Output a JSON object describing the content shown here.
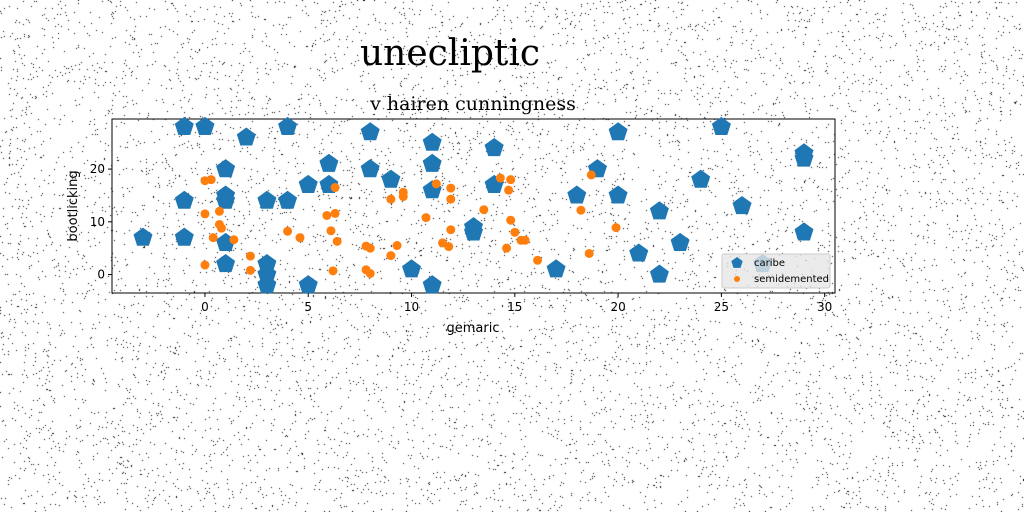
{
  "chart_data": {
    "type": "scatter",
    "suptitle": "unecliptic",
    "title": "v hairen cunningness",
    "xlabel": "gemaric",
    "ylabel": "bootlicking",
    "xlim": [
      -4.5,
      30.5
    ],
    "ylim": [
      -3.5,
      29.5
    ],
    "xticks": [
      0,
      5,
      10,
      15,
      20,
      25,
      30
    ],
    "yticks": [
      0,
      10,
      20
    ],
    "grid": false,
    "legend_position": "lower-right",
    "series": [
      {
        "name": "caribe",
        "marker": "pentagon",
        "color": "#1f77b4",
        "points": [
          [
            -3,
            7
          ],
          [
            -1,
            28
          ],
          [
            -1,
            14
          ],
          [
            -1,
            7
          ],
          [
            0,
            28
          ],
          [
            1,
            20
          ],
          [
            1,
            15
          ],
          [
            1,
            14
          ],
          [
            1,
            6
          ],
          [
            1,
            2
          ],
          [
            2,
            26
          ],
          [
            3,
            14
          ],
          [
            3,
            2
          ],
          [
            3,
            0
          ],
          [
            3,
            -2
          ],
          [
            4,
            28
          ],
          [
            4,
            14
          ],
          [
            5,
            17
          ],
          [
            5,
            -2
          ],
          [
            6,
            21
          ],
          [
            6,
            17
          ],
          [
            8,
            27
          ],
          [
            8,
            20
          ],
          [
            9,
            18
          ],
          [
            10,
            1
          ],
          [
            11,
            25
          ],
          [
            11,
            21
          ],
          [
            11,
            16
          ],
          [
            11,
            -2
          ],
          [
            13,
            9
          ],
          [
            13,
            8
          ],
          [
            14,
            24
          ],
          [
            14,
            17
          ],
          [
            17,
            1
          ],
          [
            18,
            15
          ],
          [
            19,
            20
          ],
          [
            20,
            27
          ],
          [
            20,
            15
          ],
          [
            21,
            4
          ],
          [
            22,
            12
          ],
          [
            22,
            0
          ],
          [
            23,
            6
          ],
          [
            24,
            18
          ],
          [
            25,
            28
          ],
          [
            26,
            13
          ],
          [
            27,
            2
          ],
          [
            29,
            23
          ],
          [
            29,
            22
          ],
          [
            29,
            8
          ]
        ]
      },
      {
        "name": "semidemented",
        "marker": "circle",
        "color": "#ff7f0e",
        "points": [
          [
            0,
            17.8
          ],
          [
            0.3,
            18
          ],
          [
            0,
            11.5
          ],
          [
            0,
            1.8
          ],
          [
            0.4,
            7
          ],
          [
            0.7,
            12
          ],
          [
            0.7,
            9.5
          ],
          [
            0.8,
            8.8
          ],
          [
            1.4,
            6.6
          ],
          [
            2.2,
            3.5
          ],
          [
            2.2,
            0.8
          ],
          [
            4,
            8.2
          ],
          [
            4.6,
            7
          ],
          [
            5.9,
            11.2
          ],
          [
            6.1,
            8.3
          ],
          [
            6.2,
            0.7
          ],
          [
            6.3,
            16.5
          ],
          [
            6.3,
            11.6
          ],
          [
            6.4,
            6.3
          ],
          [
            7.8,
            5.4
          ],
          [
            7.8,
            0.9
          ],
          [
            8,
            5
          ],
          [
            8,
            0.2
          ],
          [
            9,
            14.3
          ],
          [
            9,
            3.6
          ],
          [
            9.3,
            5.5
          ],
          [
            9.6,
            15.6
          ],
          [
            9.6,
            14.8
          ],
          [
            10.7,
            10.8
          ],
          [
            11.2,
            17.2
          ],
          [
            11.5,
            6
          ],
          [
            11.8,
            5.3
          ],
          [
            11.9,
            16.4
          ],
          [
            11.9,
            14.3
          ],
          [
            11.9,
            8.5
          ],
          [
            13.5,
            12.3
          ],
          [
            14.3,
            18.3
          ],
          [
            14.6,
            5
          ],
          [
            14.7,
            16
          ],
          [
            14.8,
            18
          ],
          [
            14.8,
            10.3
          ],
          [
            15,
            8
          ],
          [
            15.3,
            6.5
          ],
          [
            15.5,
            6.5
          ],
          [
            16.1,
            2.7
          ],
          [
            18.2,
            12.2
          ],
          [
            18.6,
            4
          ],
          [
            18.7,
            18.9
          ],
          [
            19.9,
            8.9
          ]
        ]
      }
    ]
  }
}
